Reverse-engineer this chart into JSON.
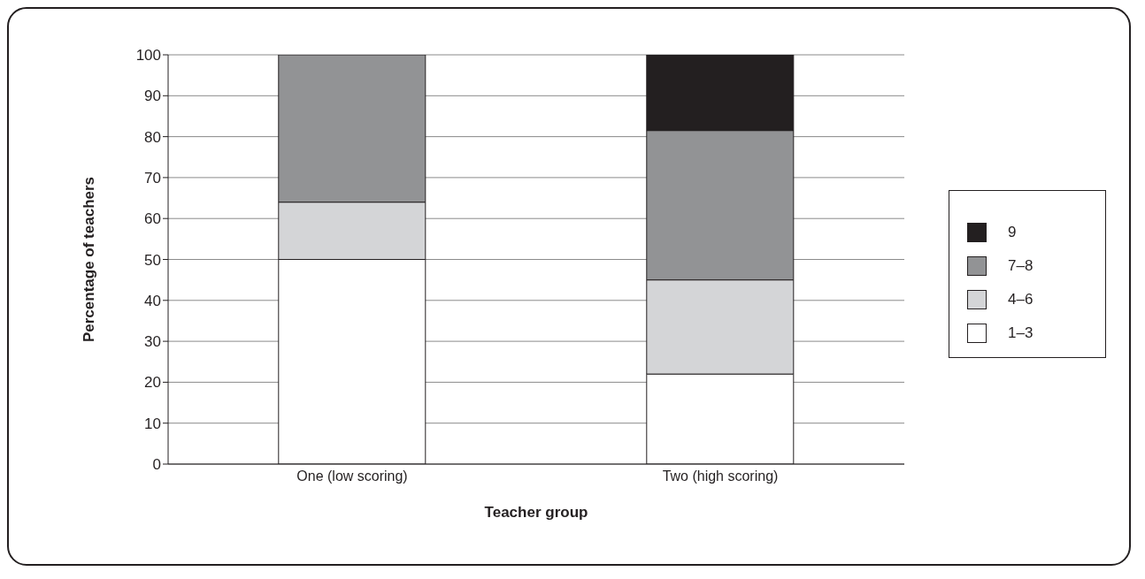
{
  "chart_data": {
    "type": "bar",
    "stacked": true,
    "xlabel": "Teacher group",
    "ylabel": "Percentage of teachers",
    "categories": [
      "One (low scoring)",
      "Two (high scoring)"
    ],
    "series": [
      {
        "name": "1–3",
        "color": "#ffffff",
        "values": [
          50,
          22
        ]
      },
      {
        "name": "4–6",
        "color": "#d4d5d7",
        "values": [
          14,
          23
        ]
      },
      {
        "name": "7–8",
        "color": "#929395",
        "values": [
          36,
          36.5
        ]
      },
      {
        "name": "9",
        "color": "#231f20",
        "values": [
          0,
          18.5
        ]
      }
    ],
    "ylim": [
      0,
      100
    ],
    "yticks": [
      0,
      10,
      20,
      30,
      40,
      50,
      60,
      70,
      80,
      90,
      100
    ],
    "grid": "y",
    "legend": "right"
  }
}
